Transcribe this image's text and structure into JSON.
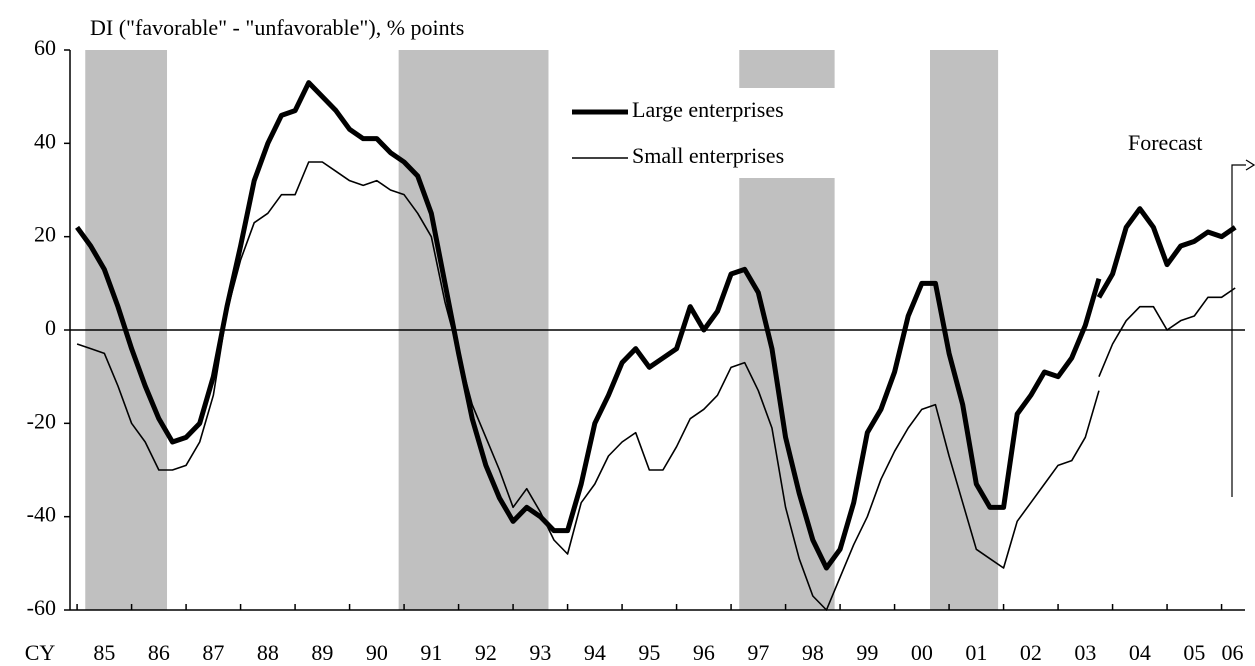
{
  "chart_data": {
    "type": "line",
    "y_label": "DI (\"favorable\" - \"unfavorable\"), % points",
    "x_prefix": "CY",
    "annotation": "Forecast",
    "xlim": [
      1984.87,
      2006.43
    ],
    "xticks": [
      {
        "value": 1985.5,
        "label": "85"
      },
      {
        "value": 1986.5,
        "label": "86"
      },
      {
        "value": 1987.5,
        "label": "87"
      },
      {
        "value": 1988.5,
        "label": "88"
      },
      {
        "value": 1989.5,
        "label": "89"
      },
      {
        "value": 1990.5,
        "label": "90"
      },
      {
        "value": 1991.5,
        "label": "91"
      },
      {
        "value": 1992.5,
        "label": "92"
      },
      {
        "value": 1993.5,
        "label": "93"
      },
      {
        "value": 1994.5,
        "label": "94"
      },
      {
        "value": 1995.5,
        "label": "95"
      },
      {
        "value": 1996.5,
        "label": "96"
      },
      {
        "value": 1997.5,
        "label": "97"
      },
      {
        "value": 1998.5,
        "label": "98"
      },
      {
        "value": 1999.5,
        "label": "99"
      },
      {
        "value": 2000.5,
        "label": "00"
      },
      {
        "value": 2001.5,
        "label": "01"
      },
      {
        "value": 2002.5,
        "label": "02"
      },
      {
        "value": 2003.5,
        "label": "03"
      },
      {
        "value": 2004.5,
        "label": "04"
      },
      {
        "value": 2005.5,
        "label": "05"
      },
      {
        "value": 2006.2,
        "label": "06"
      }
    ],
    "ylim": [
      -60,
      60
    ],
    "yticks": [
      -60,
      -40,
      -20,
      0,
      20,
      40,
      60
    ],
    "shaded": [
      [
        1985.15,
        1986.65
      ],
      [
        1990.9,
        1993.65
      ],
      [
        1997.15,
        1998.9
      ],
      [
        2000.65,
        2001.9
      ]
    ],
    "shade_color": "#c0c0c0",
    "series": [
      {
        "name": "Large enterprises",
        "color": "#000000",
        "width": 5,
        "pieces": [
          {
            "x": [
              1985,
              1985.25,
              1985.5,
              1985.75,
              1986,
              1986.25,
              1986.5,
              1986.75,
              1987,
              1987.25,
              1987.5,
              1987.75,
              1988,
              1988.25,
              1988.5,
              1988.75,
              1989,
              1989.25,
              1989.5,
              1989.75,
              1990,
              1990.25,
              1990.5,
              1990.75,
              1991,
              1991.25,
              1991.5,
              1991.75,
              1992,
              1992.25,
              1992.5,
              1992.75,
              1993,
              1993.25,
              1993.5,
              1993.75,
              1994,
              1994.25,
              1994.5,
              1994.75,
              1995,
              1995.25,
              1995.5,
              1995.75,
              1996,
              1996.25,
              1996.5,
              1996.75,
              1997,
              1997.25,
              1997.5,
              1997.75,
              1998,
              1998.25,
              1998.5,
              1998.75,
              1999,
              1999.25,
              1999.5,
              1999.75,
              2000,
              2000.25,
              2000.5,
              2000.75,
              2001,
              2001.25,
              2001.5,
              2001.75,
              2002,
              2002.25,
              2002.5,
              2002.75,
              2003,
              2003.25,
              2003.5,
              2003.75
            ],
            "values": [
              22,
              18,
              13,
              5,
              -4,
              -12,
              -19,
              -24,
              -23,
              -20,
              -10,
              5,
              18,
              32,
              40,
              46,
              47,
              53,
              50,
              47,
              43,
              41,
              41,
              38,
              36,
              33,
              25,
              10,
              -5,
              -19,
              -29,
              -36,
              -41,
              -38,
              -40,
              -43,
              -43,
              -33,
              -20,
              -14,
              -7,
              -4,
              -8,
              -6,
              -4,
              5,
              0,
              4,
              12,
              13,
              8,
              -4,
              -23,
              -35,
              -45,
              -51,
              -47,
              -37,
              -22,
              -17,
              -9,
              3,
              10,
              10,
              -5,
              -16,
              -33,
              -38,
              -38,
              -18,
              -14,
              -9,
              -10,
              -6,
              1,
              11
            ]
          },
          {
            "x": [
              2003.75,
              2004,
              2004.25,
              2004.5,
              2004.75,
              2005,
              2005.25,
              2005.5,
              2005.75,
              2006,
              2006.25
            ],
            "values": [
              7,
              12,
              22,
              26,
              22,
              14,
              18,
              19,
              21,
              20,
              22
            ]
          }
        ]
      },
      {
        "name": "Small enterprises",
        "color": "#000000",
        "width": 1.6,
        "pieces": [
          {
            "x": [
              1985,
              1985.25,
              1985.5,
              1985.75,
              1986,
              1986.25,
              1986.5,
              1986.75,
              1987,
              1987.25,
              1987.5,
              1987.75,
              1988,
              1988.25,
              1988.5,
              1988.75,
              1989,
              1989.25,
              1989.5,
              1989.75,
              1990,
              1990.25,
              1990.5,
              1990.75,
              1991,
              1991.25,
              1991.5,
              1991.75,
              1992,
              1992.25,
              1992.5,
              1992.75,
              1993,
              1993.25,
              1993.5,
              1993.75,
              1994,
              1994.25,
              1994.5,
              1994.75,
              1995,
              1995.25,
              1995.5,
              1995.75,
              1996,
              1996.25,
              1996.5,
              1996.75,
              1997,
              1997.25,
              1997.5,
              1997.75,
              1998,
              1998.25,
              1998.5,
              1998.75,
              1999,
              1999.25,
              1999.5,
              1999.75,
              2000,
              2000.25,
              2000.5,
              2000.75,
              2001,
              2001.25,
              2001.5,
              2001.75,
              2002,
              2002.25,
              2002.5,
              2002.75,
              2003,
              2003.25,
              2003.5,
              2003.75
            ],
            "values": [
              -3,
              -4,
              -5,
              -12,
              -20,
              -24,
              -30,
              -30,
              -29,
              -24,
              -14,
              4,
              15,
              23,
              25,
              29,
              29,
              36,
              36,
              34,
              32,
              31,
              32,
              30,
              29,
              25,
              20,
              6,
              -5,
              -16,
              -23,
              -30,
              -38,
              -34,
              -39,
              -45,
              -48,
              -37,
              -33,
              -27,
              -24,
              -22,
              -30,
              -30,
              -25,
              -19,
              -17,
              -14,
              -8,
              -7,
              -13,
              -21,
              -38,
              -49,
              -57,
              -60,
              -53,
              -46,
              -40,
              -32,
              -26,
              -21,
              -17,
              -16,
              -27,
              -37,
              -47,
              -49,
              -51,
              -41,
              -37,
              -33,
              -29,
              -28,
              -23,
              -13
            ]
          },
          {
            "x": [
              2003.75,
              2004,
              2004.25,
              2004.5,
              2004.75,
              2005,
              2005.25,
              2005.5,
              2005.75,
              2006,
              2006.25
            ],
            "values": [
              -10,
              -3,
              2,
              5,
              5,
              0,
              2,
              3,
              7,
              7,
              9
            ]
          }
        ]
      }
    ]
  }
}
